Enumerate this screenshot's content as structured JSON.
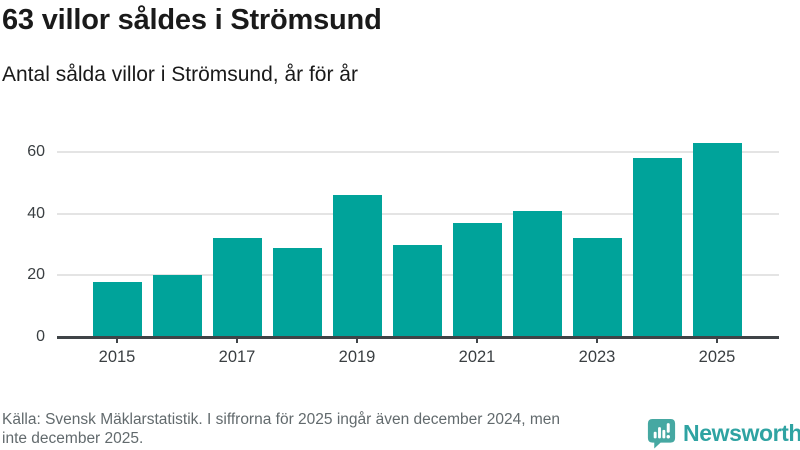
{
  "chart_data": {
    "type": "bar",
    "title": "63 villor såldes i Strömsund",
    "subtitle": "Antal sålda villor i Strömsund, år för år",
    "categories": [
      2015,
      2016,
      2017,
      2018,
      2019,
      2020,
      2021,
      2022,
      2023,
      2024,
      2025
    ],
    "values": [
      18,
      20,
      32,
      29,
      46,
      30,
      37,
      41,
      32,
      58,
      63
    ],
    "xlabel": "",
    "ylabel": "",
    "ylim": [
      0,
      66
    ],
    "y_ticks": [
      0,
      20,
      40,
      60
    ],
    "x_tick_labels": [
      "2015",
      "2017",
      "2019",
      "2021",
      "2023",
      "2025"
    ],
    "grid": true,
    "legend": false,
    "bar_color": "#00a39a"
  },
  "footer": {
    "source_lines": [
      "Källa: Svensk Mäklarstatistik. I siffrorna för 2025 ingår även december 2024, men",
      "inte december 2025."
    ],
    "brand_name": "Newsworthy",
    "brand_text_color": "#2fa3a2",
    "brand_icon_color": "#46a8a2",
    "brand_icon": "speech-bubble-bar-chart"
  },
  "colors": {
    "background": "#ffffff",
    "title_text": "#1a1a1a",
    "subtitle_text": "#1a1a1a",
    "axis": "#3f4447",
    "gridline": "#e4e4e4",
    "tick_text": "#3a3f42",
    "source_text": "#626a6d"
  }
}
